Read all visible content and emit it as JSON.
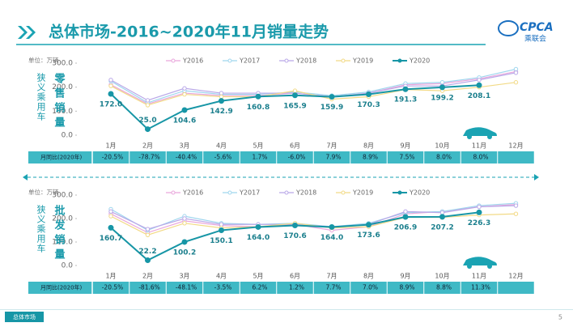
{
  "header": {
    "title": "总体市场-2016~2020年11月销量走势",
    "logo_text": "CPCA",
    "logo_sub": "乘联会"
  },
  "footer": {
    "tab": "总体市场",
    "page": "5"
  },
  "chart_data": [
    {
      "type": "line",
      "unit": "单位：万辆",
      "side_label": "狭义乘用车",
      "metric": "零售销量",
      "categories": [
        "1月",
        "2月",
        "3月",
        "4月",
        "5月",
        "6月",
        "7月",
        "8月",
        "9月",
        "10月",
        "11月",
        "12月"
      ],
      "ylim": [
        0,
        300
      ],
      "yticks": [
        {
          "value": 0,
          "label": "0.0"
        },
        {
          "value": 100,
          "label": "100.0"
        },
        {
          "value": 200,
          "label": "200.0"
        },
        {
          "value": 300,
          "label": "300.0"
        }
      ],
      "series": [
        {
          "name": "Y2016",
          "color": "#e9a6dc",
          "values": [
            210,
            130,
            175,
            165,
            165,
            175,
            160,
            175,
            210,
            215,
            235,
            265
          ]
        },
        {
          "name": "Y2017",
          "color": "#9fd6ee",
          "values": [
            225,
            135,
            185,
            170,
            170,
            180,
            165,
            180,
            215,
            220,
            240,
            275
          ]
        },
        {
          "name": "Y2018",
          "color": "#b9a8e8",
          "values": [
            230,
            145,
            195,
            175,
            175,
            175,
            160,
            175,
            205,
            205,
            230,
            260
          ]
        },
        {
          "name": "Y2019",
          "color": "#f2da86",
          "values": [
            205,
            125,
            170,
            160,
            160,
            185,
            150,
            160,
            190,
            185,
            200,
            220
          ]
        },
        {
          "name": "Y2020",
          "color": "#1796a6",
          "values": [
            172.0,
            25.0,
            104.6,
            142.9,
            160.8,
            165.9,
            159.9,
            170.3,
            191.3,
            199.2,
            208.1,
            null
          ],
          "value_labels": [
            "172.0",
            "25.0",
            "104.6",
            "142.9",
            "160.8",
            "165.9",
            "159.9",
            "170.3",
            "191.3",
            "199.2",
            "208.1",
            null
          ]
        }
      ],
      "yoy_label": "月同比(2020年)",
      "yoy": [
        "-20.5%",
        "-78.7%",
        "-40.4%",
        "-5.6%",
        "1.7%",
        "-6.0%",
        "7.9%",
        "8.9%",
        "7.5%",
        "8.0%",
        "8.0%"
      ]
    },
    {
      "type": "line",
      "unit": "单位：万辆",
      "side_label": "狭义乘用车",
      "metric": "批发销量",
      "categories": [
        "1月",
        "2月",
        "3月",
        "4月",
        "5月",
        "6月",
        "7月",
        "8月",
        "9月",
        "10月",
        "11月",
        "12月"
      ],
      "ylim": [
        0,
        300
      ],
      "yticks": [
        {
          "value": 0,
          "label": "0.0"
        },
        {
          "value": 100,
          "label": "100.0"
        },
        {
          "value": 200,
          "label": "200.0"
        },
        {
          "value": 300,
          "label": "300.0"
        }
      ],
      "series": [
        {
          "name": "Y2016",
          "color": "#e9a6dc",
          "values": [
            220,
            140,
            190,
            170,
            165,
            175,
            150,
            165,
            220,
            230,
            250,
            260
          ]
        },
        {
          "name": "Y2017",
          "color": "#9fd6ee",
          "values": [
            240,
            150,
            210,
            180,
            175,
            180,
            165,
            180,
            225,
            230,
            255,
            265
          ]
        },
        {
          "name": "Y2018",
          "color": "#b9a8e8",
          "values": [
            230,
            155,
            200,
            175,
            175,
            175,
            165,
            175,
            230,
            225,
            250,
            255
          ]
        },
        {
          "name": "Y2019",
          "color": "#f2da86",
          "values": [
            210,
            130,
            180,
            160,
            165,
            180,
            160,
            165,
            205,
            205,
            215,
            220
          ]
        },
        {
          "name": "Y2020",
          "color": "#1796a6",
          "values": [
            160.7,
            22.2,
            100.2,
            150.1,
            164.0,
            170.6,
            164.0,
            173.6,
            206.9,
            207.2,
            226.3,
            null
          ],
          "value_labels": [
            "160.7",
            "22.2",
            "100.2",
            "150.1",
            "164.0",
            "170.6",
            "164.0",
            "173.6",
            "206.9",
            "207.2",
            "226.3",
            null
          ]
        }
      ],
      "yoy_label": "月同比(2020年)",
      "yoy": [
        "-20.5%",
        "-81.6%",
        "-48.1%",
        "-3.5%",
        "6.2%",
        "1.2%",
        "7.7%",
        "7.0%",
        "8.9%",
        "8.8%",
        "11.3%"
      ]
    }
  ]
}
